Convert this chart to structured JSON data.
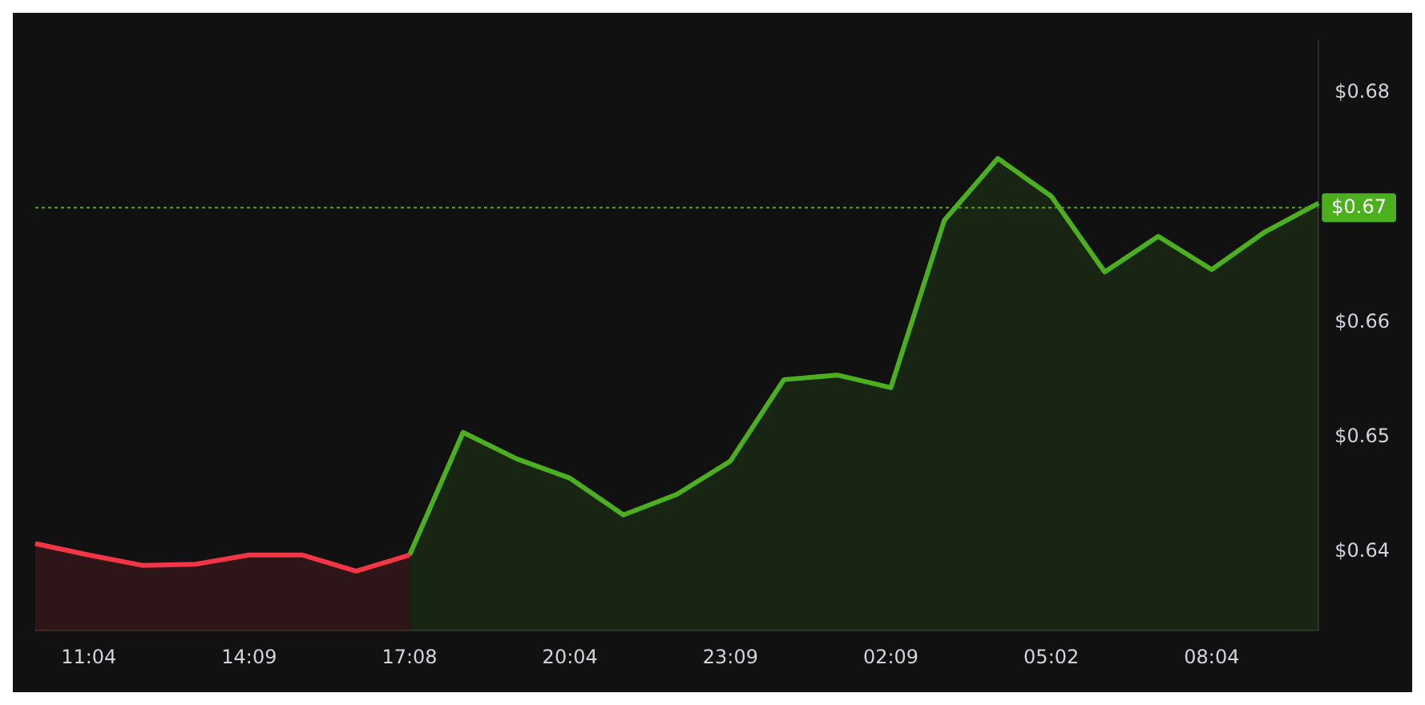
{
  "chart_data": {
    "type": "area",
    "categories": [
      null,
      "11:04",
      null,
      null,
      "14:09",
      null,
      null,
      "17:08",
      null,
      null,
      "20:04",
      null,
      null,
      "23:09",
      null,
      null,
      "02:09",
      null,
      null,
      "05:02",
      null,
      null,
      "08:04",
      null,
      null
    ],
    "series": [
      {
        "color": "#f23645",
        "values": [
          0.6407,
          0.6397,
          0.6388,
          0.6389,
          0.6397,
          0.6397,
          0.6383,
          0.6397,
          null,
          null,
          null,
          null,
          null,
          null,
          null,
          null,
          null,
          null,
          null,
          null,
          null,
          null,
          null,
          null,
          null
        ]
      },
      {
        "color": "#4caf1e",
        "values": [
          null,
          null,
          null,
          null,
          null,
          null,
          null,
          0.6397,
          0.6504,
          0.6481,
          0.6464,
          0.6432,
          0.645,
          0.6479,
          0.655,
          0.6554,
          0.6543,
          0.6689,
          0.6743,
          0.671,
          0.6644,
          0.6675,
          0.6646,
          0.6679,
          0.6704
        ]
      }
    ],
    "ylim": [
      0.6331,
      0.6846
    ],
    "yticks": [
      {
        "value": 0.64,
        "label": "$0.64"
      },
      {
        "value": 0.65,
        "label": "$0.65"
      },
      {
        "value": 0.66,
        "label": "$0.66"
      },
      {
        "value": 0.68,
        "label": "$0.68"
      }
    ],
    "ref_lines": [
      {
        "axis": "y",
        "value": 0.67,
        "label": "$0.67",
        "color": "#4caf1e",
        "line_style": "dotted"
      }
    ],
    "grid": false,
    "legend": false
  }
}
